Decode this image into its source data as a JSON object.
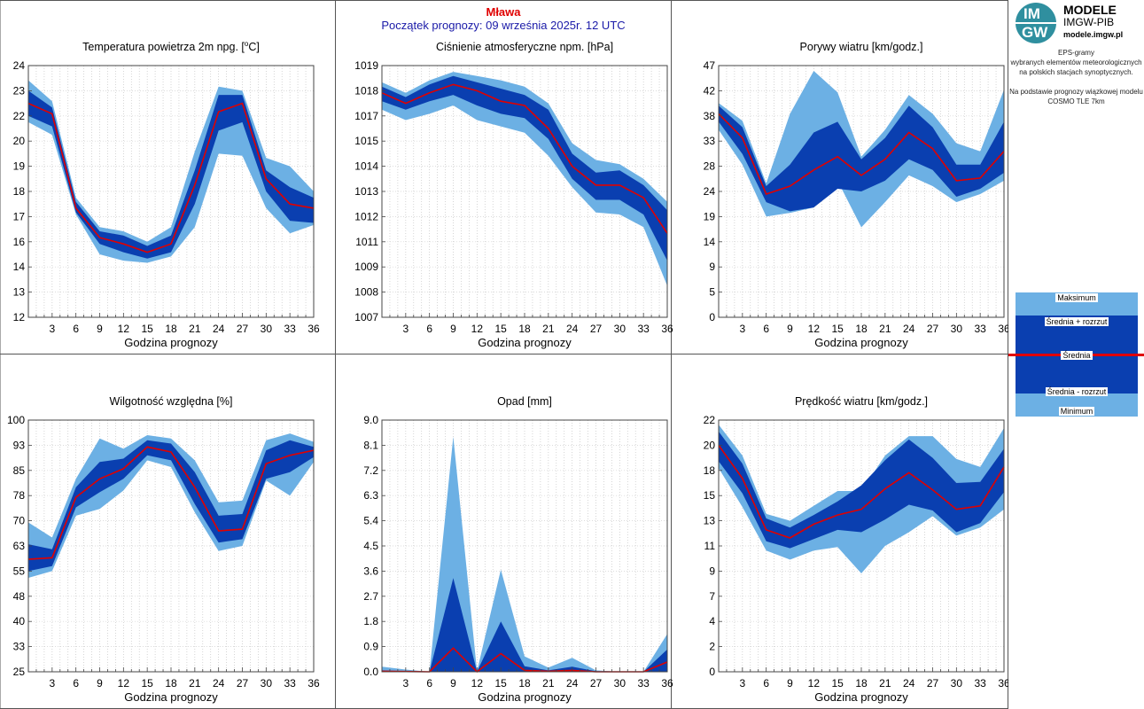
{
  "header": {
    "station": "Mława",
    "start": "Początek prognozy: 09 września 2025r. 12 UTC"
  },
  "sidebar": {
    "logo_letters_top": "IM",
    "logo_letters_bottom": "GW",
    "logo_title": "MODELE",
    "logo_subtitle": "IMGW-PIB",
    "logo_site": "modele.imgw.pl",
    "description_lines": [
      "EPS-gramy",
      "wybranych elementów meteorologicznych",
      "na polskich stacjach  synoptycznych.",
      "",
      "Na podstawie prognozy wiązkowej modelu",
      "COSMO TLE 7km"
    ],
    "legend": {
      "max": "Maksimum",
      "mean_plus": "Średnia + rozrzut",
      "mean": "Średnia",
      "mean_minus": "Średnia - rozrzut",
      "min": "Minimum"
    }
  },
  "colors": {
    "outer_band": "#6cb0e4",
    "inner_band": "#0a3fb0",
    "mean_line": "#e00000"
  },
  "chart_data": [
    {
      "type": "area",
      "title_prefix": "Temperatura powietrza 2m npg. [",
      "title_sup": "o",
      "title_suffix": "C]",
      "xlabel": "Godzina prognozy",
      "x": [
        0,
        3,
        6,
        9,
        12,
        15,
        18,
        21,
        24,
        27,
        30,
        33,
        36
      ],
      "xticks": [
        "3",
        "6",
        "9",
        "12",
        "15",
        "18",
        "21",
        "24",
        "27",
        "30",
        "33",
        "36"
      ],
      "xtick_values": [
        3,
        6,
        9,
        12,
        15,
        18,
        21,
        24,
        27,
        30,
        33,
        36
      ],
      "yticks": [
        "12",
        "13",
        "14",
        "16",
        "17",
        "18",
        "19",
        "20",
        "22",
        "23",
        "24"
      ],
      "ylim": [
        12,
        24
      ],
      "series": {
        "max": [
          23.3,
          22.3,
          17.7,
          16.3,
          16.1,
          15.6,
          16.3,
          19.9,
          23.0,
          22.8,
          19.6,
          19.2,
          18.0
        ],
        "mean_plus": [
          22.8,
          22.0,
          17.5,
          16.1,
          15.9,
          15.4,
          15.9,
          19.0,
          22.6,
          22.6,
          19.0,
          18.2,
          17.7
        ],
        "mean": [
          22.2,
          21.7,
          17.2,
          15.8,
          15.5,
          15.1,
          15.5,
          18.3,
          21.8,
          22.2,
          18.6,
          17.4,
          17.2
        ],
        "mean_minus": [
          21.6,
          21.1,
          17.0,
          15.5,
          15.1,
          14.8,
          15.1,
          17.4,
          20.9,
          21.3,
          18.0,
          16.6,
          16.5
        ],
        "min": [
          21.3,
          20.7,
          16.9,
          15.0,
          14.7,
          14.6,
          14.9,
          16.3,
          19.8,
          19.7,
          17.2,
          16.0,
          16.4
        ]
      }
    },
    {
      "type": "area",
      "title_prefix": "Ciśnienie atmosferyczne npm. [hPa]",
      "title_sup": "",
      "title_suffix": "",
      "xlabel": "Godzina prognozy",
      "x": [
        0,
        3,
        6,
        9,
        12,
        15,
        18,
        21,
        24,
        27,
        30,
        33,
        36
      ],
      "xticks": [
        "3",
        "6",
        "9",
        "12",
        "15",
        "18",
        "21",
        "24",
        "27",
        "30",
        "33",
        "36"
      ],
      "xtick_values": [
        3,
        6,
        9,
        12,
        15,
        18,
        21,
        24,
        27,
        30,
        33,
        36
      ],
      "yticks": [
        "1007",
        "1008",
        "1009",
        "1011",
        "1012",
        "1013",
        "1014",
        "1015",
        "1017",
        "1018",
        "1019"
      ],
      "ylim": [
        1007,
        1019
      ],
      "series": {
        "max": [
          1018.2,
          1017.7,
          1018.3,
          1018.7,
          1018.5,
          1018.3,
          1018.0,
          1017.2,
          1015.3,
          1014.5,
          1014.3,
          1013.6,
          1012.5
        ],
        "mean_plus": [
          1018.0,
          1017.5,
          1018.1,
          1018.5,
          1018.2,
          1017.9,
          1017.6,
          1016.9,
          1014.8,
          1013.9,
          1014.0,
          1013.3,
          1012.1
        ],
        "mean": [
          1017.7,
          1017.2,
          1017.7,
          1018.1,
          1017.8,
          1017.3,
          1017.1,
          1016.0,
          1014.2,
          1013.3,
          1013.3,
          1012.7,
          1011.0
        ],
        "mean_minus": [
          1017.3,
          1016.9,
          1017.3,
          1017.6,
          1017.1,
          1016.7,
          1016.5,
          1015.5,
          1013.6,
          1012.6,
          1012.6,
          1011.9,
          1009.7
        ],
        "min": [
          1016.9,
          1016.4,
          1016.7,
          1017.1,
          1016.4,
          1016.1,
          1015.8,
          1014.7,
          1013.2,
          1012.0,
          1011.9,
          1011.3,
          1008.5
        ]
      }
    },
    {
      "type": "area",
      "title_prefix": "Porywy wiatru [km/godz.]",
      "title_sup": "",
      "title_suffix": "",
      "xlabel": "Godzina prognozy",
      "x": [
        0,
        3,
        6,
        9,
        12,
        15,
        18,
        21,
        24,
        27,
        30,
        33,
        36
      ],
      "xticks": [
        "3",
        "6",
        "9",
        "12",
        "15",
        "18",
        "21",
        "24",
        "27",
        "30",
        "33",
        "36"
      ],
      "xtick_values": [
        3,
        6,
        9,
        12,
        15,
        18,
        21,
        24,
        27,
        30,
        33,
        36
      ],
      "yticks": [
        "0",
        "5",
        "9",
        "14",
        "19",
        "24",
        "28",
        "33",
        "38",
        "42",
        "47"
      ],
      "ylim": [
        0,
        47
      ],
      "series": {
        "max": [
          40.0,
          36.7,
          25.0,
          38.0,
          46.0,
          42.0,
          30.0,
          35.0,
          41.5,
          38.0,
          32.5,
          31.0,
          42.5
        ],
        "mean_plus": [
          39.5,
          35.5,
          24.5,
          28.5,
          34.5,
          36.5,
          29.5,
          33.5,
          39.5,
          35.5,
          28.5,
          28.5,
          36.5
        ],
        "mean": [
          38.0,
          33.5,
          23.0,
          24.5,
          27.5,
          30.0,
          26.5,
          29.5,
          34.5,
          31.5,
          25.5,
          26.0,
          31.0
        ],
        "mean_minus": [
          36.5,
          30.5,
          21.5,
          19.8,
          20.5,
          24.0,
          23.5,
          25.5,
          29.5,
          27.5,
          22.5,
          24.0,
          27.0
        ],
        "min": [
          35.0,
          28.5,
          18.8,
          19.5,
          20.5,
          25.5,
          16.8,
          21.5,
          26.5,
          24.5,
          21.5,
          23.0,
          25.5
        ]
      }
    },
    {
      "type": "area",
      "title_prefix": "Wilgotność względna [%]",
      "title_sup": "",
      "title_suffix": "",
      "xlabel": "Godzina prognozy",
      "x": [
        0,
        3,
        6,
        9,
        12,
        15,
        18,
        21,
        24,
        27,
        30,
        33,
        36
      ],
      "xticks": [
        "3",
        "6",
        "9",
        "12",
        "15",
        "18",
        "21",
        "24",
        "27",
        "30",
        "33",
        "36"
      ],
      "xtick_values": [
        3,
        6,
        9,
        12,
        15,
        18,
        21,
        24,
        27,
        30,
        33,
        36
      ],
      "yticks": [
        "25",
        "33",
        "40",
        "48",
        "55",
        "63",
        "70",
        "78",
        "85",
        "93",
        "100"
      ],
      "ylim": [
        25,
        100
      ],
      "series": {
        "max": [
          69.5,
          65.0,
          82.5,
          94.5,
          91.5,
          95.5,
          94.5,
          88.0,
          75.5,
          76.0,
          94.0,
          96.0,
          93.5
        ],
        "mean_plus": [
          63.0,
          61.5,
          80.0,
          87.5,
          88.5,
          94.0,
          93.0,
          84.5,
          71.5,
          72.0,
          91.0,
          94.0,
          92.0
        ],
        "mean": [
          58.5,
          59.0,
          77.0,
          82.5,
          85.5,
          92.0,
          90.5,
          80.0,
          67.0,
          67.5,
          87.0,
          89.5,
          91.0
        ],
        "mean_minus": [
          55.0,
          56.5,
          74.0,
          78.5,
          82.5,
          89.5,
          88.0,
          75.0,
          63.5,
          64.5,
          82.5,
          84.5,
          89.0
        ],
        "min": [
          53.0,
          55.0,
          71.5,
          73.5,
          79.0,
          88.0,
          86.0,
          72.5,
          61.0,
          62.5,
          82.0,
          77.5,
          87.5
        ]
      }
    },
    {
      "type": "area",
      "title_prefix": "Opad [mm]",
      "title_sup": "",
      "title_suffix": "",
      "xlabel": "Godzina prognozy",
      "x": [
        0,
        3,
        6,
        9,
        12,
        15,
        18,
        21,
        24,
        27,
        30,
        33,
        36
      ],
      "xticks": [
        "3",
        "6",
        "9",
        "12",
        "15",
        "18",
        "21",
        "24",
        "27",
        "30",
        "33",
        "36"
      ],
      "xtick_values": [
        3,
        6,
        9,
        12,
        15,
        18,
        21,
        24,
        27,
        30,
        33,
        36
      ],
      "yticks": [
        "0.0",
        "0.9",
        "1.8",
        "2.7",
        "3.6",
        "4.5",
        "5.4",
        "6.3",
        "7.2",
        "8.1",
        "9.0"
      ],
      "ylim": [
        0,
        9
      ],
      "series": {
        "max": [
          0.18,
          0.08,
          0.0,
          8.4,
          0.02,
          3.65,
          0.55,
          0.15,
          0.5,
          0.05,
          0.0,
          0.0,
          1.35
        ],
        "mean_plus": [
          0.05,
          0.02,
          0.0,
          3.35,
          0.01,
          1.8,
          0.2,
          0.05,
          0.18,
          0.02,
          0.0,
          0.0,
          0.8
        ],
        "mean": [
          0.02,
          0.01,
          0.0,
          0.85,
          0.0,
          0.65,
          0.05,
          0.02,
          0.05,
          0.0,
          0.0,
          0.0,
          0.35
        ],
        "mean_minus": [
          0.0,
          0.0,
          0.0,
          0.0,
          0.0,
          0.0,
          0.0,
          0.0,
          0.0,
          0.0,
          0.0,
          0.0,
          0.0
        ],
        "min": [
          0.0,
          0.0,
          0.0,
          0.0,
          0.0,
          0.0,
          0.0,
          0.0,
          0.0,
          0.0,
          0.0,
          0.0,
          0.0
        ]
      }
    },
    {
      "type": "area",
      "title_prefix": "Prędkość wiatru [km/godz.]",
      "title_sup": "",
      "title_suffix": "",
      "xlabel": "Godzina prognozy",
      "x": [
        0,
        3,
        6,
        9,
        12,
        15,
        18,
        21,
        24,
        27,
        30,
        33,
        36
      ],
      "xticks": [
        "3",
        "6",
        "9",
        "12",
        "15",
        "18",
        "21",
        "24",
        "27",
        "30",
        "33",
        "36"
      ],
      "xtick_values": [
        3,
        6,
        9,
        12,
        15,
        18,
        21,
        24,
        27,
        30,
        33,
        36
      ],
      "yticks": [
        "0",
        "2",
        "4",
        "7",
        "9",
        "11",
        "13",
        "15",
        "18",
        "20",
        "22"
      ],
      "ylim": [
        0,
        22
      ],
      "series": {
        "max": [
          21.6,
          18.9,
          13.8,
          13.2,
          14.5,
          15.8,
          15.8,
          18.9,
          20.6,
          20.6,
          18.6,
          17.9,
          21.3
        ],
        "mean_plus": [
          21.0,
          18.2,
          13.4,
          12.6,
          13.7,
          14.9,
          16.3,
          18.5,
          20.3,
          18.7,
          16.5,
          16.6,
          19.5
        ],
        "mean": [
          19.8,
          16.9,
          12.4,
          11.7,
          12.9,
          13.7,
          14.2,
          16.0,
          17.4,
          15.9,
          14.2,
          14.5,
          17.9
        ],
        "mean_minus": [
          18.4,
          15.6,
          11.4,
          10.8,
          11.6,
          12.4,
          12.2,
          13.3,
          14.6,
          14.1,
          12.2,
          13.0,
          15.7
        ],
        "min": [
          17.8,
          14.4,
          10.6,
          9.8,
          10.6,
          10.9,
          8.6,
          11.0,
          12.2,
          13.6,
          11.9,
          12.6,
          14.2
        ]
      }
    }
  ]
}
